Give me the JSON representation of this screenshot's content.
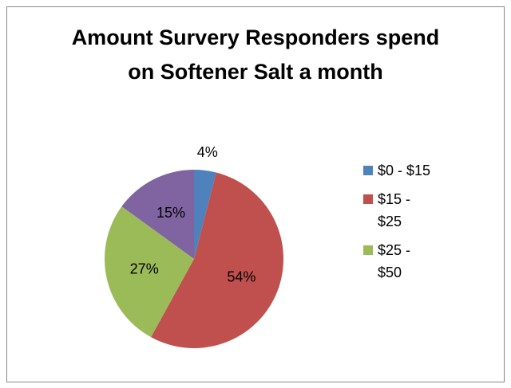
{
  "chart_data": {
    "type": "pie",
    "title": "Amount Survery Responders spend on Softener Salt a month",
    "categories": [
      "$0 - $15",
      "$15 - $25",
      "$25 - $50",
      null
    ],
    "values": [
      4,
      54,
      27,
      15
    ],
    "value_labels": [
      "4%",
      "54%",
      "27%",
      "15%"
    ],
    "colors": [
      "#4f81bd",
      "#c0504d",
      "#9bbb59",
      "#8064a2"
    ],
    "legend": "right"
  }
}
